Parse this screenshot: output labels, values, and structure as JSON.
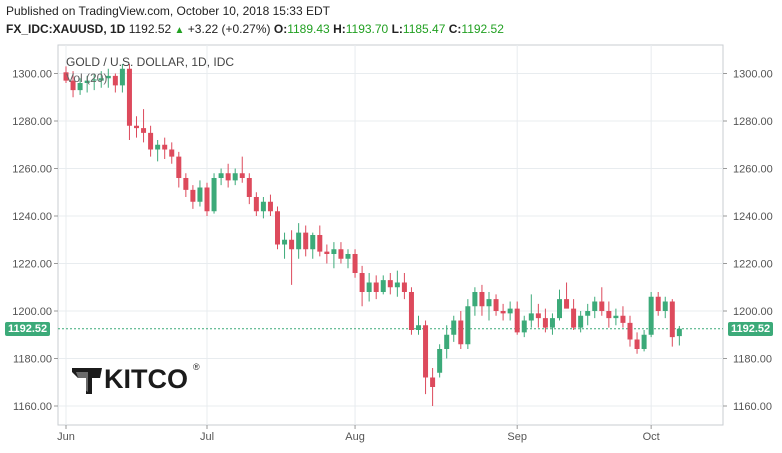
{
  "header": {
    "published": "Published on TradingView.com, October 10, 2018 15:33 EDT",
    "symbol": "FX_IDC:XAUUSD, 1D",
    "last": "1192.52",
    "arrow": "▲",
    "change": "+3.22 (+0.27%)",
    "o_label": "O:",
    "o_value": "1189.43",
    "h_label": "H:",
    "h_value": "1193.70",
    "l_label": "L:",
    "l_value": "1185.47",
    "c_label": "C:",
    "c_value": "1192.52"
  },
  "legend": {
    "title": "GOLD / U.S. DOLLAR, 1D, IDC",
    "volume": "Vol (20)"
  },
  "watermark": {
    "brand": "KITCO",
    "registered": "®"
  },
  "price_badge": "1192.52",
  "colors": {
    "up": "#3caa79",
    "down": "#dd4a5c",
    "grid": "#e8ecef",
    "axis_text": "#555555",
    "price_line": "#3caa79"
  },
  "chart_data": {
    "type": "candlestick",
    "title": "GOLD / U.S. DOLLAR, 1D, IDC",
    "ylim": [
      1152,
      1312
    ],
    "y_ticks": [
      1160,
      1180,
      1200,
      1220,
      1240,
      1260,
      1280,
      1300
    ],
    "y_tick_labels": [
      "1160.00",
      "1180.00",
      "1200.00",
      "1220.00",
      "1240.00",
      "1260.00",
      "1280.00",
      "1300.00"
    ],
    "x_ticks": [
      {
        "label": "Jun",
        "index": 0
      },
      {
        "label": "Jul",
        "index": 20
      },
      {
        "label": "Aug",
        "index": 41
      },
      {
        "label": "Sep",
        "index": 64
      },
      {
        "label": "Oct",
        "index": 83
      }
    ],
    "last_price": 1192.52,
    "candles": [
      {
        "o": 1300.5,
        "h": 1303,
        "l": 1296,
        "c": 1297
      },
      {
        "o": 1297,
        "h": 1301,
        "l": 1290,
        "c": 1293
      },
      {
        "o": 1293,
        "h": 1298,
        "l": 1291,
        "c": 1296
      },
      {
        "o": 1296,
        "h": 1299,
        "l": 1292,
        "c": 1297
      },
      {
        "o": 1297,
        "h": 1300,
        "l": 1293,
        "c": 1297.5
      },
      {
        "o": 1297,
        "h": 1301,
        "l": 1294,
        "c": 1298
      },
      {
        "o": 1298,
        "h": 1302,
        "l": 1294,
        "c": 1299
      },
      {
        "o": 1299,
        "h": 1300,
        "l": 1292,
        "c": 1295
      },
      {
        "o": 1295,
        "h": 1304,
        "l": 1292,
        "c": 1302
      },
      {
        "o": 1302,
        "h": 1304,
        "l": 1272,
        "c": 1278
      },
      {
        "o": 1278,
        "h": 1282,
        "l": 1273,
        "c": 1277
      },
      {
        "o": 1277,
        "h": 1285,
        "l": 1271,
        "c": 1275
      },
      {
        "o": 1275,
        "h": 1278,
        "l": 1265,
        "c": 1268
      },
      {
        "o": 1268,
        "h": 1272,
        "l": 1263,
        "c": 1270
      },
      {
        "o": 1270,
        "h": 1273,
        "l": 1264,
        "c": 1268
      },
      {
        "o": 1268,
        "h": 1271,
        "l": 1262,
        "c": 1265
      },
      {
        "o": 1265,
        "h": 1267,
        "l": 1252,
        "c": 1256
      },
      {
        "o": 1256,
        "h": 1258,
        "l": 1248,
        "c": 1251
      },
      {
        "o": 1251,
        "h": 1253,
        "l": 1243,
        "c": 1246
      },
      {
        "o": 1246,
        "h": 1255,
        "l": 1244,
        "c": 1252
      },
      {
        "o": 1252,
        "h": 1254,
        "l": 1240,
        "c": 1242
      },
      {
        "o": 1242,
        "h": 1258,
        "l": 1241,
        "c": 1256
      },
      {
        "o": 1256,
        "h": 1260,
        "l": 1253,
        "c": 1258
      },
      {
        "o": 1258,
        "h": 1262,
        "l": 1252,
        "c": 1255
      },
      {
        "o": 1255,
        "h": 1260,
        "l": 1253,
        "c": 1258
      },
      {
        "o": 1258,
        "h": 1265,
        "l": 1254,
        "c": 1256
      },
      {
        "o": 1256,
        "h": 1258,
        "l": 1245,
        "c": 1248
      },
      {
        "o": 1248,
        "h": 1250,
        "l": 1240,
        "c": 1242
      },
      {
        "o": 1242,
        "h": 1248,
        "l": 1239,
        "c": 1246
      },
      {
        "o": 1246,
        "h": 1249,
        "l": 1240,
        "c": 1242
      },
      {
        "o": 1242,
        "h": 1244,
        "l": 1226,
        "c": 1228
      },
      {
        "o": 1228,
        "h": 1233,
        "l": 1222,
        "c": 1230
      },
      {
        "o": 1230,
        "h": 1234,
        "l": 1211,
        "c": 1226
      },
      {
        "o": 1226,
        "h": 1237,
        "l": 1222,
        "c": 1233
      },
      {
        "o": 1233,
        "h": 1236,
        "l": 1223,
        "c": 1226
      },
      {
        "o": 1226,
        "h": 1233,
        "l": 1222,
        "c": 1232
      },
      {
        "o": 1232,
        "h": 1236,
        "l": 1223,
        "c": 1225
      },
      {
        "o": 1225,
        "h": 1228,
        "l": 1220,
        "c": 1224
      },
      {
        "o": 1224,
        "h": 1229,
        "l": 1218,
        "c": 1226
      },
      {
        "o": 1226,
        "h": 1229,
        "l": 1220,
        "c": 1222
      },
      {
        "o": 1222,
        "h": 1226,
        "l": 1218,
        "c": 1224
      },
      {
        "o": 1224,
        "h": 1226,
        "l": 1214,
        "c": 1216
      },
      {
        "o": 1216,
        "h": 1219,
        "l": 1202,
        "c": 1208
      },
      {
        "o": 1208,
        "h": 1216,
        "l": 1204,
        "c": 1212
      },
      {
        "o": 1212,
        "h": 1215,
        "l": 1205,
        "c": 1208
      },
      {
        "o": 1208,
        "h": 1215,
        "l": 1207,
        "c": 1213
      },
      {
        "o": 1213,
        "h": 1216,
        "l": 1207,
        "c": 1210
      },
      {
        "o": 1210,
        "h": 1217,
        "l": 1206,
        "c": 1212
      },
      {
        "o": 1212,
        "h": 1216,
        "l": 1205,
        "c": 1208
      },
      {
        "o": 1208,
        "h": 1210,
        "l": 1190,
        "c": 1192
      },
      {
        "o": 1192,
        "h": 1198,
        "l": 1190,
        "c": 1194
      },
      {
        "o": 1194,
        "h": 1196,
        "l": 1165,
        "c": 1172
      },
      {
        "o": 1172,
        "h": 1176,
        "l": 1160,
        "c": 1168
      },
      {
        "o": 1174,
        "h": 1186,
        "l": 1172,
        "c": 1184
      },
      {
        "o": 1184,
        "h": 1194,
        "l": 1180,
        "c": 1190
      },
      {
        "o": 1190,
        "h": 1198,
        "l": 1187,
        "c": 1196
      },
      {
        "o": 1196,
        "h": 1200,
        "l": 1184,
        "c": 1186
      },
      {
        "o": 1186,
        "h": 1205,
        "l": 1184,
        "c": 1202
      },
      {
        "o": 1202,
        "h": 1210,
        "l": 1198,
        "c": 1208
      },
      {
        "o": 1208,
        "h": 1211,
        "l": 1198,
        "c": 1202
      },
      {
        "o": 1202,
        "h": 1208,
        "l": 1196,
        "c": 1205
      },
      {
        "o": 1205,
        "h": 1207,
        "l": 1198,
        "c": 1200
      },
      {
        "o": 1200,
        "h": 1203,
        "l": 1196,
        "c": 1199
      },
      {
        "o": 1199,
        "h": 1204,
        "l": 1196,
        "c": 1201
      },
      {
        "o": 1201,
        "h": 1204,
        "l": 1190,
        "c": 1191
      },
      {
        "o": 1191,
        "h": 1198,
        "l": 1189,
        "c": 1196
      },
      {
        "o": 1196,
        "h": 1207,
        "l": 1193,
        "c": 1199
      },
      {
        "o": 1199,
        "h": 1203,
        "l": 1193,
        "c": 1197
      },
      {
        "o": 1197,
        "h": 1201,
        "l": 1191,
        "c": 1193
      },
      {
        "o": 1193,
        "h": 1199,
        "l": 1190,
        "c": 1197
      },
      {
        "o": 1197,
        "h": 1209,
        "l": 1196,
        "c": 1205
      },
      {
        "o": 1205,
        "h": 1212,
        "l": 1202,
        "c": 1201
      },
      {
        "o": 1201,
        "h": 1205,
        "l": 1192,
        "c": 1193
      },
      {
        "o": 1193,
        "h": 1200,
        "l": 1191,
        "c": 1198
      },
      {
        "o": 1198,
        "h": 1203,
        "l": 1194,
        "c": 1200
      },
      {
        "o": 1200,
        "h": 1206,
        "l": 1197,
        "c": 1204
      },
      {
        "o": 1204,
        "h": 1210,
        "l": 1198,
        "c": 1200
      },
      {
        "o": 1200,
        "h": 1204,
        "l": 1193,
        "c": 1197
      },
      {
        "o": 1197,
        "h": 1201,
        "l": 1194,
        "c": 1198
      },
      {
        "o": 1198,
        "h": 1202,
        "l": 1193,
        "c": 1195
      },
      {
        "o": 1195,
        "h": 1198,
        "l": 1185,
        "c": 1188
      },
      {
        "o": 1188,
        "h": 1191,
        "l": 1182,
        "c": 1184
      },
      {
        "o": 1184,
        "h": 1192,
        "l": 1183,
        "c": 1190
      },
      {
        "o": 1190,
        "h": 1208,
        "l": 1189,
        "c": 1206
      },
      {
        "o": 1206,
        "h": 1208,
        "l": 1198,
        "c": 1200
      },
      {
        "o": 1200,
        "h": 1206,
        "l": 1197,
        "c": 1204
      },
      {
        "o": 1204,
        "h": 1205,
        "l": 1185,
        "c": 1189
      },
      {
        "o": 1189.43,
        "h": 1193.7,
        "l": 1185.47,
        "c": 1192.52
      }
    ]
  }
}
